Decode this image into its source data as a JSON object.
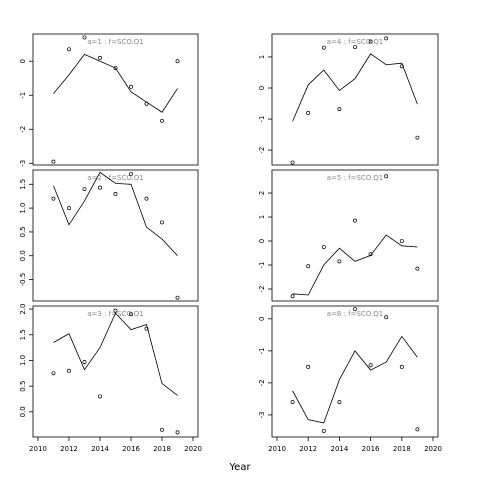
{
  "xlabel": "Year",
  "chart_data": [
    {
      "type": "line",
      "title": "a=1 : f=SCO.Q1",
      "x": [
        2011,
        2012,
        2013,
        2014,
        2015,
        2016,
        2017,
        2018,
        2019
      ],
      "xlim": [
        2009.68,
        2020.32
      ],
      "ylim": [
        -3.05,
        0.8
      ],
      "yticks": [
        0,
        -1,
        -2,
        -3
      ],
      "series": [
        {
          "mode": "line",
          "color": "#000000",
          "values": [
            -0.95,
            -0.4,
            0.2,
            0.0,
            -0.2,
            -0.9,
            -1.2,
            -1.5,
            -0.8
          ]
        },
        {
          "mode": "points",
          "color": "#000000",
          "values": [
            -2.95,
            0.35,
            0.7,
            0.1,
            -0.2,
            -0.75,
            -1.25,
            -1.75,
            0.0
          ]
        }
      ]
    },
    {
      "type": "line",
      "title": "a=2 : f=SCO.Q1",
      "x": [
        2011,
        2012,
        2013,
        2014,
        2015,
        2016,
        2017,
        2018,
        2019
      ],
      "xlim": [
        2009.68,
        2020.32
      ],
      "ylim": [
        -0.95,
        1.8
      ],
      "yticks": [
        1.5,
        {
          "value": 1,
          "label": "1.0"
        },
        0.5,
        {
          "value": 0,
          "label": "0.0"
        },
        -0.5
      ],
      "series": [
        {
          "mode": "line",
          "color": "#000000",
          "values": [
            1.47,
            0.65,
            1.15,
            1.75,
            1.52,
            1.5,
            0.6,
            0.35,
            0.0
          ]
        },
        {
          "mode": "points",
          "color": "#000000",
          "values": [
            1.2,
            1.0,
            1.4,
            1.43,
            1.3,
            1.72,
            1.2,
            0.7,
            -0.88
          ]
        }
      ]
    },
    {
      "type": "line",
      "title": "a=3 : f=SCO.Q1",
      "x": [
        2011,
        2012,
        2013,
        2014,
        2015,
        2016,
        2017,
        2018,
        2019
      ],
      "xlim": [
        2009.68,
        2020.32
      ],
      "ylim": [
        -0.49,
        2.06
      ],
      "yticks": [
        {
          "value": 2,
          "label": "2.0"
        },
        1.5,
        {
          "value": 1,
          "label": "1.0"
        },
        0.5,
        {
          "value": 0,
          "label": "0.0"
        }
      ],
      "xticks": [
        2010,
        2012,
        2014,
        2016,
        2018,
        2020
      ],
      "series": [
        {
          "mode": "line",
          "color": "#000000",
          "values": [
            1.35,
            1.52,
            0.82,
            1.25,
            1.92,
            1.6,
            1.7,
            0.55,
            0.32
          ]
        },
        {
          "mode": "points",
          "color": "#000000",
          "values": [
            0.75,
            0.8,
            0.97,
            0.3,
            1.97,
            1.9,
            1.62,
            -0.35,
            -0.4
          ]
        }
      ]
    },
    {
      "type": "line",
      "title": "a=4 : f=SCO.Q1",
      "x": [
        2011,
        2012,
        2013,
        2014,
        2015,
        2016,
        2017,
        2018,
        2019
      ],
      "xlim": [
        2009.68,
        2020.32
      ],
      "ylim": [
        -2.48,
        1.74
      ],
      "yticks": [
        1,
        0,
        -1,
        -2
      ],
      "series": [
        {
          "mode": "line",
          "color": "#000000",
          "values": [
            -1.07,
            0.1,
            0.58,
            -0.08,
            0.3,
            1.1,
            0.75,
            0.8,
            -0.52
          ]
        },
        {
          "mode": "points",
          "color": "#000000",
          "values": [
            -2.4,
            -0.8,
            1.3,
            -0.68,
            1.32,
            1.5,
            1.6,
            0.7,
            -1.6
          ]
        }
      ]
    },
    {
      "type": "line",
      "title": "a=5 : f=SCO.Q1",
      "x": [
        2011,
        2012,
        2013,
        2014,
        2015,
        2016,
        2017,
        2018,
        2019
      ],
      "xlim": [
        2009.68,
        2020.32
      ],
      "ylim": [
        -2.5,
        2.96
      ],
      "yticks": [
        2,
        1,
        0,
        -1,
        -2
      ],
      "series": [
        {
          "mode": "line",
          "color": "#000000",
          "values": [
            -2.2,
            -2.25,
            -1.0,
            -0.3,
            -0.85,
            -0.6,
            0.25,
            -0.2,
            -0.25
          ]
        },
        {
          "mode": "points",
          "color": "#000000",
          "values": [
            -2.3,
            -1.05,
            -0.25,
            -0.85,
            0.85,
            -0.55,
            2.7,
            0.0,
            -1.15
          ]
        }
      ]
    },
    {
      "type": "line",
      "title": "a=6 : f=SCO.Q1",
      "x": [
        2011,
        2012,
        2013,
        2014,
        2015,
        2016,
        2017,
        2018,
        2019
      ],
      "xlim": [
        2009.68,
        2020.32
      ],
      "ylim": [
        -3.69,
        0.4
      ],
      "yticks": [
        0,
        -1,
        -2,
        -3
      ],
      "xticks": [
        2010,
        2012,
        2014,
        2016,
        2018,
        2020
      ],
      "series": [
        {
          "mode": "line",
          "color": "#000000",
          "values": [
            -2.25,
            -3.15,
            -3.25,
            -1.9,
            -1.0,
            -1.6,
            -1.35,
            -0.55,
            -1.2
          ]
        },
        {
          "mode": "points",
          "color": "#000000",
          "values": [
            -2.6,
            -1.5,
            -3.5,
            -2.6,
            0.3,
            -1.45,
            0.05,
            -1.5,
            -3.45
          ]
        }
      ]
    }
  ]
}
